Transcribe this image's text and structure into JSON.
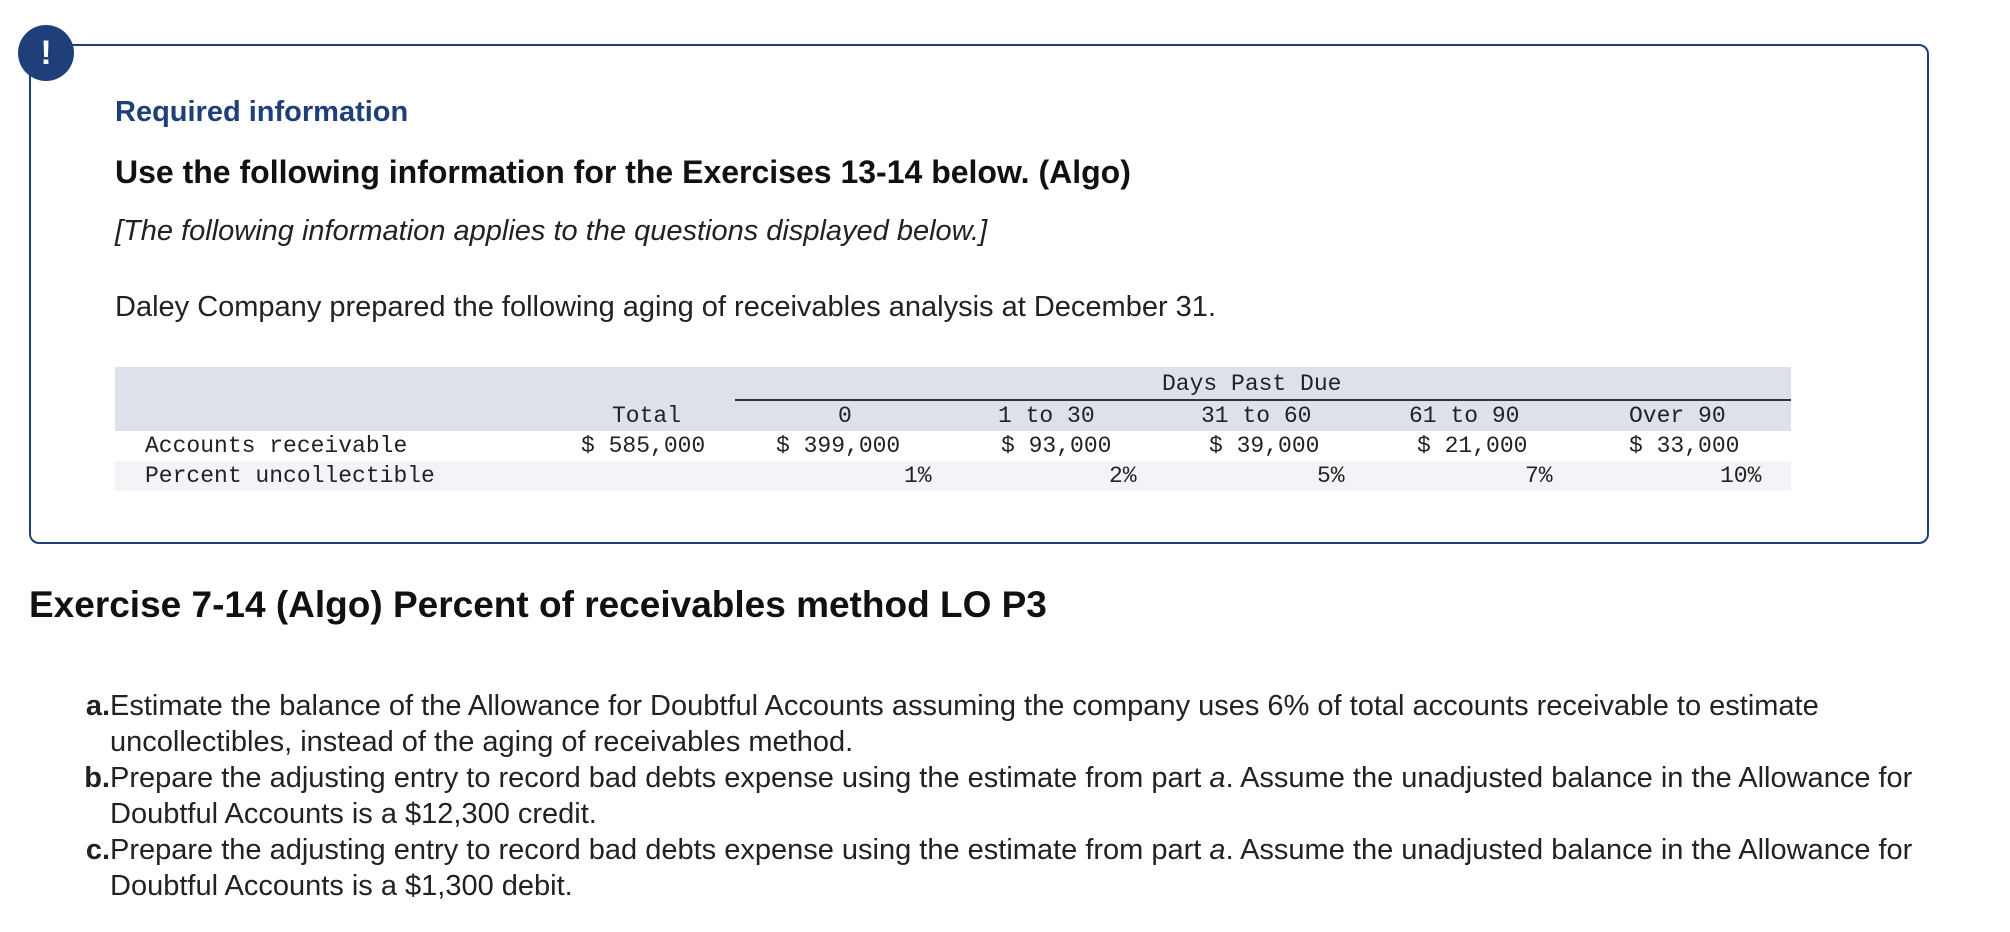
{
  "alert": {
    "icon": "exclamation-icon",
    "glyph": "!",
    "color": "#1f3f7a"
  },
  "info": {
    "heading": "Required information",
    "title": "Use the following information for the Exercises 13-14 below. (Algo)",
    "applies_note": "[The following information applies to the questions displayed below.]",
    "intro": "Daley Company prepared the following aging of receivables analysis at December 31."
  },
  "aging_table": {
    "group_header": "Days Past Due",
    "columns": [
      "Total",
      "0",
      "1 to 30",
      "31 to 60",
      "61 to 90",
      "Over 90"
    ],
    "rows": [
      {
        "label": "Accounts receivable",
        "values": [
          "$ 585,000",
          "$ 399,000",
          "$ 93,000",
          "$ 39,000",
          "$ 21,000",
          "$ 33,000"
        ]
      },
      {
        "label": "Percent uncollectible",
        "values": [
          "",
          "1%",
          "2%",
          "5%",
          "7%",
          "10%"
        ]
      }
    ]
  },
  "exercise": {
    "title": "Exercise 7-14 (Algo) Percent of receivables method LO P3",
    "parts": [
      {
        "letter": "a.",
        "text": "Estimate the balance of the Allowance for Doubtful Accounts assuming the company uses 6% of total accounts receivable to estimate uncollectibles, instead of the aging of receivables method."
      },
      {
        "letter": "b.",
        "text_before": "Prepare the adjusting entry to record bad debts expense using the estimate from part ",
        "italic": "a",
        "text_after": ". Assume the unadjusted balance in the Allowance for Doubtful Accounts is a $12,300 credit."
      },
      {
        "letter": "c.",
        "text_before": "Prepare the adjusting entry to record bad debts expense using the estimate from part ",
        "italic": "a",
        "text_after": ". Assume the unadjusted balance in the Allowance for Doubtful Accounts is a $1,300 debit."
      }
    ]
  }
}
